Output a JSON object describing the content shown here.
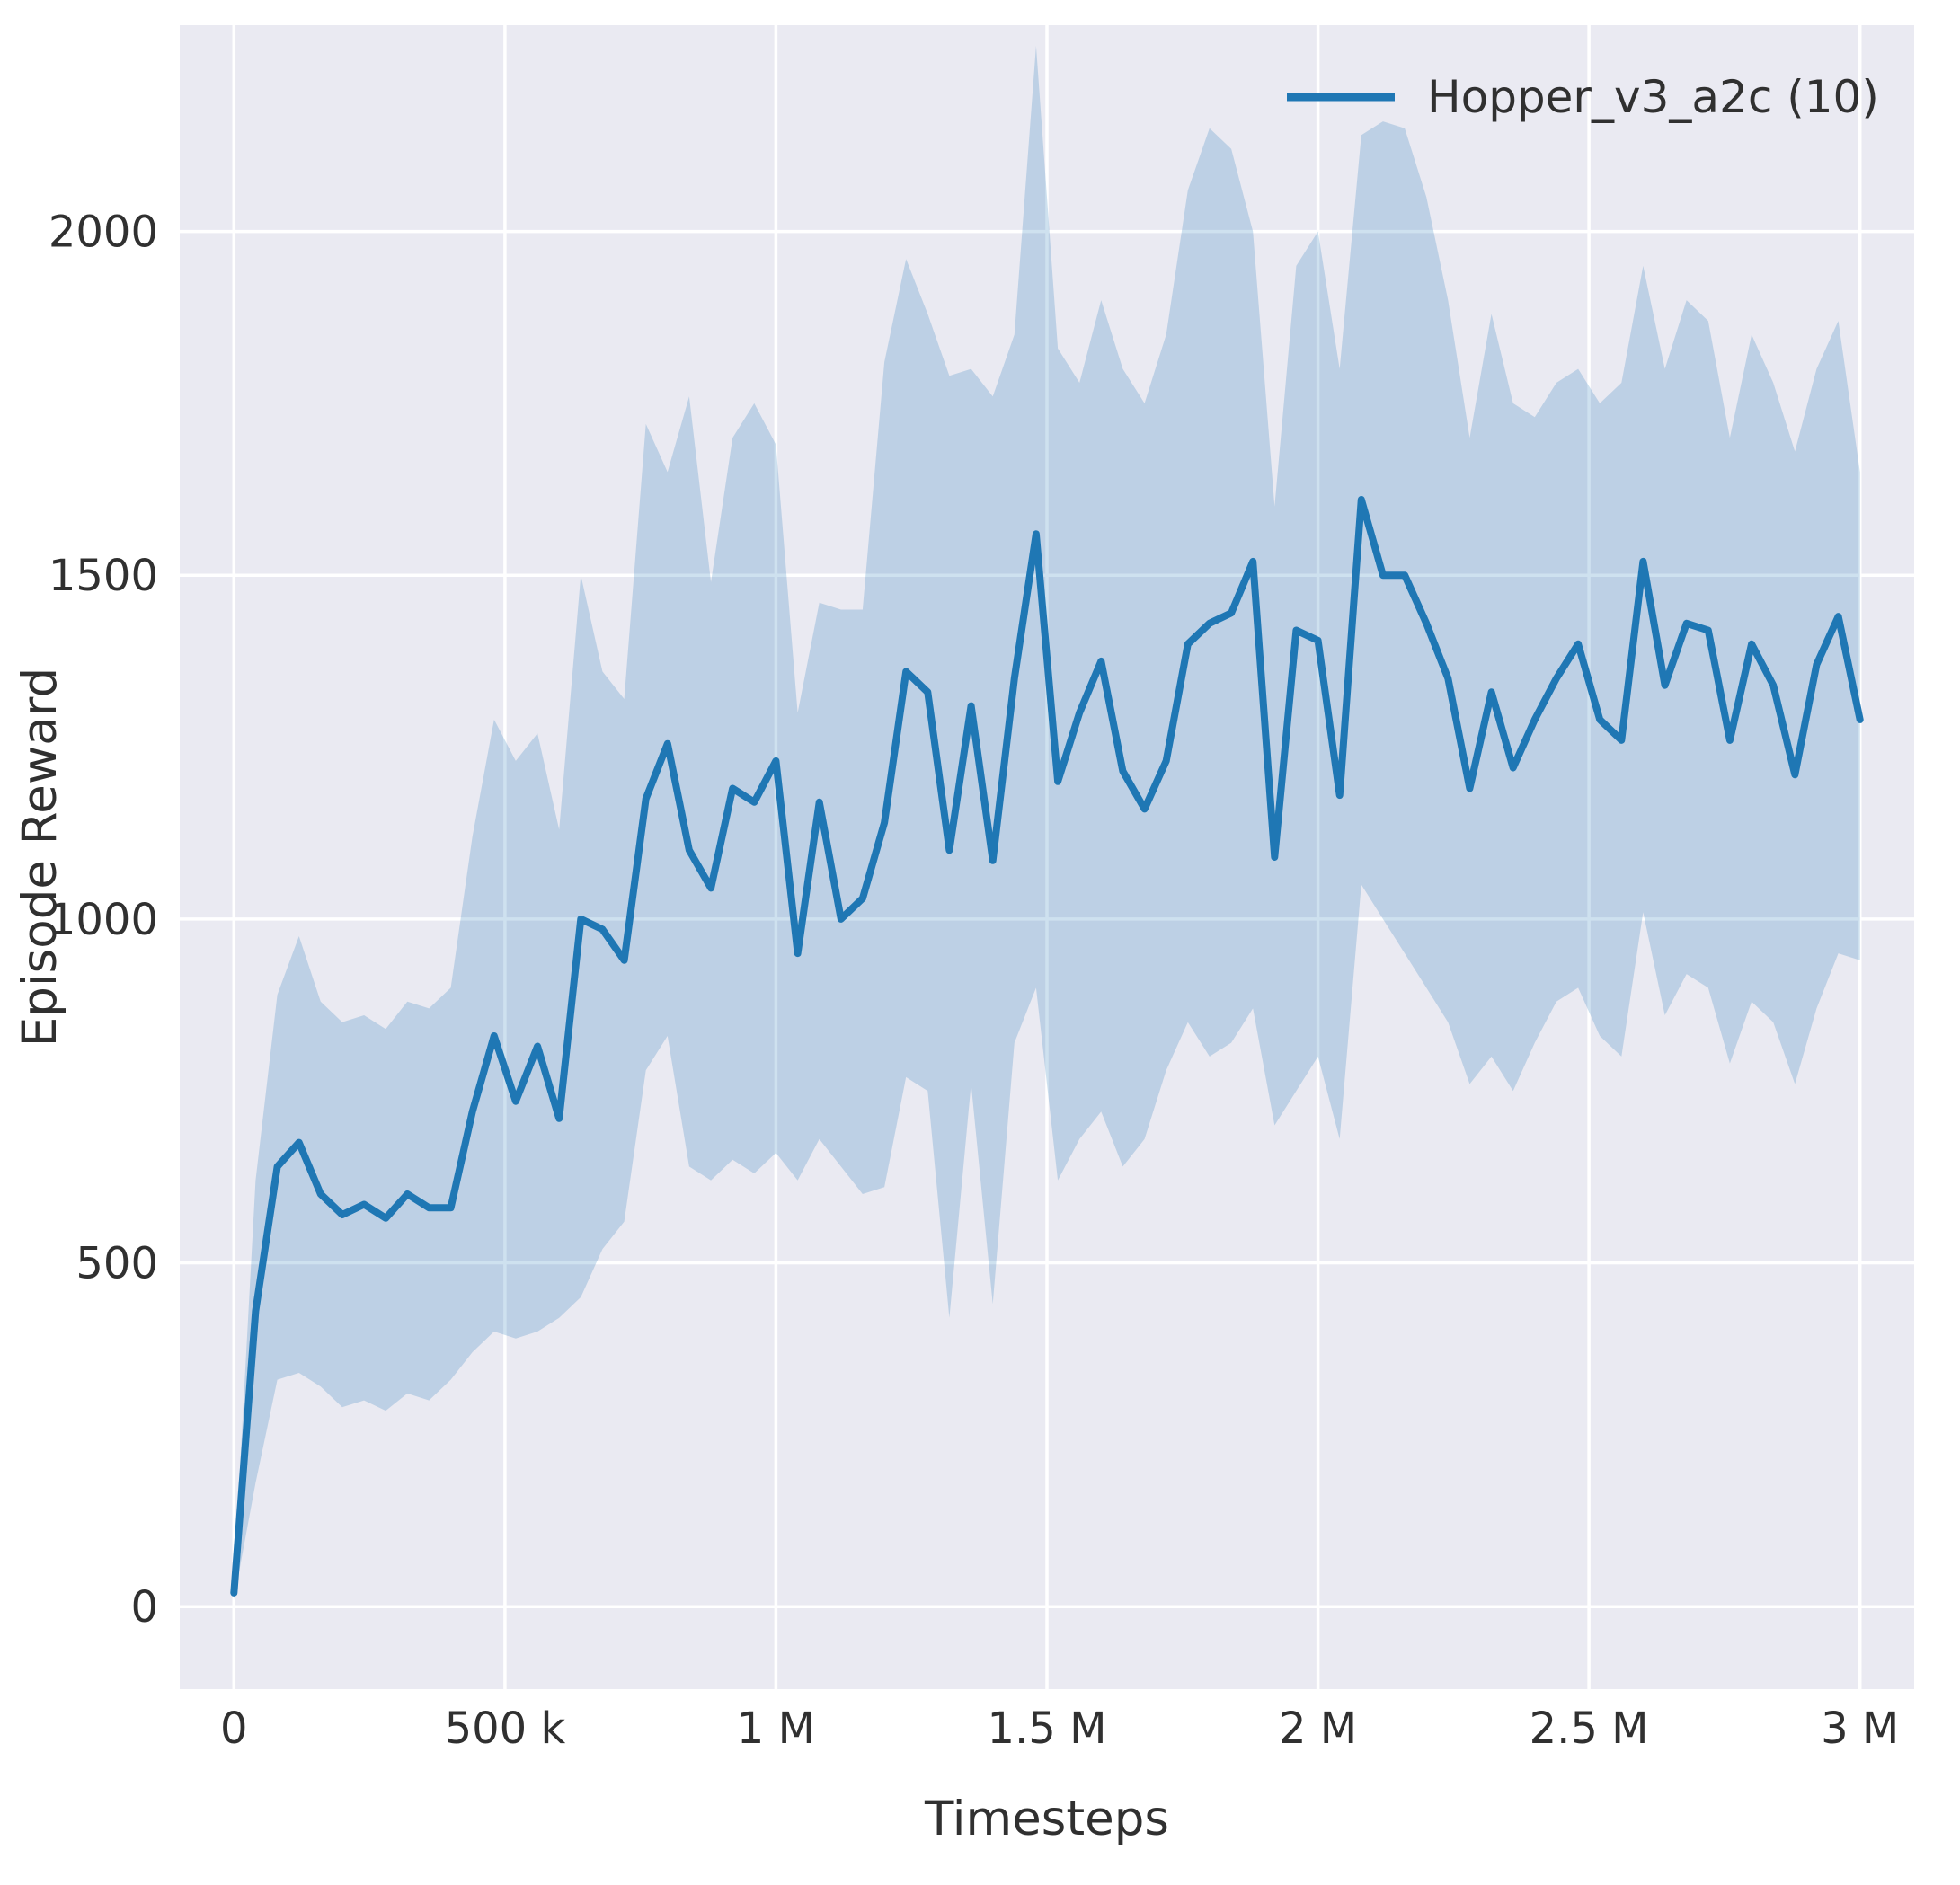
{
  "colors": {
    "axes_background": "#eaeaf2",
    "grid": "#ffffff",
    "text": "#303030",
    "line": "#1f77b4"
  },
  "chart_data": {
    "type": "line",
    "title": "",
    "xlabel": "Timesteps",
    "ylabel": "Episode Reward",
    "grid": true,
    "legend_position": "upper right",
    "xlim": [
      -100000,
      3100000
    ],
    "ylim": [
      -120,
      2300
    ],
    "x_ticks": [
      {
        "value": 0,
        "label": "0"
      },
      {
        "value": 500000,
        "label": "500 k"
      },
      {
        "value": 1000000,
        "label": "1 M"
      },
      {
        "value": 1500000,
        "label": "1.5 M"
      },
      {
        "value": 2000000,
        "label": "2 M"
      },
      {
        "value": 2500000,
        "label": "2.5 M"
      },
      {
        "value": 3000000,
        "label": "3 M"
      }
    ],
    "y_ticks": [
      {
        "value": 0,
        "label": "0"
      },
      {
        "value": 500,
        "label": "500"
      },
      {
        "value": 1000,
        "label": "1000"
      },
      {
        "value": 1500,
        "label": "1500"
      },
      {
        "value": 2000,
        "label": "2000"
      }
    ],
    "series": [
      {
        "name": "Hopper_v3_a2c (10)",
        "color": "#1f77b4",
        "band_opacity": 0.22,
        "x": [
          0,
          40000,
          80000,
          120000,
          160000,
          200000,
          240000,
          280000,
          320000,
          360000,
          400000,
          440000,
          480000,
          520000,
          560000,
          600000,
          640000,
          680000,
          720000,
          760000,
          800000,
          840000,
          880000,
          920000,
          960000,
          1000000,
          1040000,
          1080000,
          1120000,
          1160000,
          1200000,
          1240000,
          1280000,
          1320000,
          1360000,
          1400000,
          1440000,
          1480000,
          1520000,
          1560000,
          1600000,
          1640000,
          1680000,
          1720000,
          1760000,
          1800000,
          1840000,
          1880000,
          1920000,
          1960000,
          2000000,
          2040000,
          2080000,
          2120000,
          2160000,
          2200000,
          2240000,
          2280000,
          2320000,
          2360000,
          2400000,
          2440000,
          2480000,
          2520000,
          2560000,
          2600000,
          2640000,
          2680000,
          2720000,
          2760000,
          2800000,
          2840000,
          2880000,
          2920000,
          2960000,
          3000000
        ],
        "mean": [
          20,
          430,
          640,
          675,
          600,
          570,
          585,
          565,
          600,
          580,
          580,
          720,
          830,
          735,
          815,
          710,
          1000,
          985,
          940,
          1175,
          1255,
          1100,
          1045,
          1190,
          1170,
          1230,
          950,
          1170,
          1000,
          1030,
          1140,
          1360,
          1330,
          1100,
          1310,
          1085,
          1350,
          1560,
          1200,
          1300,
          1375,
          1215,
          1160,
          1230,
          1400,
          1430,
          1445,
          1520,
          1090,
          1420,
          1405,
          1180,
          1610,
          1500,
          1500,
          1430,
          1350,
          1190,
          1330,
          1220,
          1290,
          1350,
          1400,
          1290,
          1260,
          1520,
          1340,
          1430,
          1420,
          1260,
          1400,
          1340,
          1210,
          1370,
          1440,
          1290
        ],
        "lower": [
          10,
          180,
          330,
          340,
          320,
          290,
          300,
          285,
          310,
          300,
          330,
          370,
          400,
          390,
          400,
          420,
          450,
          520,
          560,
          780,
          830,
          640,
          620,
          650,
          630,
          660,
          620,
          680,
          640,
          600,
          610,
          770,
          750,
          420,
          760,
          440,
          820,
          900,
          620,
          680,
          720,
          640,
          680,
          780,
          850,
          800,
          820,
          870,
          700,
          750,
          800,
          680,
          1050,
          1000,
          950,
          900,
          850,
          760,
          800,
          750,
          820,
          880,
          900,
          830,
          800,
          1010,
          860,
          920,
          900,
          790,
          880,
          850,
          760,
          870,
          950,
          940
        ],
        "upper": [
          40,
          620,
          890,
          975,
          880,
          850,
          860,
          840,
          880,
          870,
          900,
          1120,
          1290,
          1230,
          1270,
          1130,
          1500,
          1360,
          1320,
          1720,
          1650,
          1760,
          1490,
          1700,
          1750,
          1690,
          1300,
          1460,
          1450,
          1450,
          1810,
          1960,
          1880,
          1790,
          1800,
          1760,
          1850,
          2270,
          1830,
          1780,
          1900,
          1800,
          1750,
          1850,
          2060,
          2150,
          2120,
          2000,
          1600,
          1950,
          2000,
          1800,
          2140,
          2160,
          2150,
          2050,
          1900,
          1700,
          1880,
          1750,
          1730,
          1780,
          1800,
          1750,
          1780,
          1950,
          1800,
          1900,
          1870,
          1700,
          1850,
          1780,
          1680,
          1800,
          1870,
          1650
        ]
      }
    ]
  }
}
